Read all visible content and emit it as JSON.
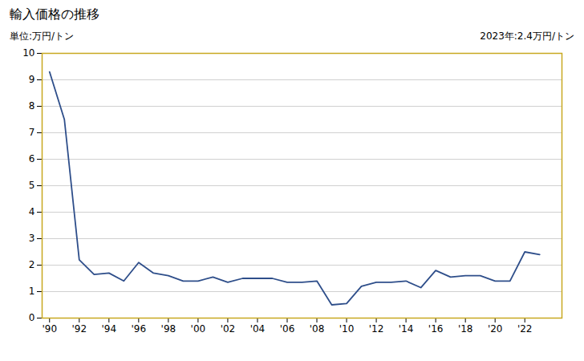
{
  "chart_data": {
    "type": "line",
    "title": "輸入価格の推移",
    "ylabel": "単位:万円/トン",
    "annotation": "2023年:2.4万円/トン",
    "x": [
      1990,
      1991,
      1992,
      1993,
      1994,
      1995,
      1996,
      1997,
      1998,
      1999,
      2000,
      2001,
      2002,
      2003,
      2004,
      2005,
      2006,
      2007,
      2008,
      2009,
      2010,
      2011,
      2012,
      2013,
      2014,
      2015,
      2016,
      2017,
      2018,
      2019,
      2020,
      2021,
      2022,
      2023
    ],
    "values": [
      9.3,
      7.5,
      2.2,
      1.65,
      1.7,
      1.4,
      2.1,
      1.7,
      1.6,
      1.4,
      1.4,
      1.55,
      1.35,
      1.5,
      1.5,
      1.5,
      1.35,
      1.35,
      1.4,
      0.5,
      0.55,
      1.2,
      1.35,
      1.35,
      1.4,
      1.15,
      1.8,
      1.55,
      1.6,
      1.6,
      1.4,
      1.4,
      2.5,
      2.4
    ],
    "color": "#2e4e8a",
    "xlim": [
      1989.5,
      2024.5
    ],
    "xticks": [
      {
        "value": 1990,
        "label": "'90"
      },
      {
        "value": 1992,
        "label": "'92"
      },
      {
        "value": 1994,
        "label": "'94"
      },
      {
        "value": 1996,
        "label": "'96"
      },
      {
        "value": 1998,
        "label": "'98"
      },
      {
        "value": 2000,
        "label": "'00"
      },
      {
        "value": 2002,
        "label": "'02"
      },
      {
        "value": 2004,
        "label": "'04"
      },
      {
        "value": 2006,
        "label": "'06"
      },
      {
        "value": 2008,
        "label": "'08"
      },
      {
        "value": 2010,
        "label": "'10"
      },
      {
        "value": 2012,
        "label": "'12"
      },
      {
        "value": 2014,
        "label": "'14"
      },
      {
        "value": 2016,
        "label": "'16"
      },
      {
        "value": 2018,
        "label": "'18"
      },
      {
        "value": 2020,
        "label": "'20"
      },
      {
        "value": 2022,
        "label": "'22"
      }
    ],
    "ylim": [
      0,
      10
    ],
    "yticks": [
      0,
      1,
      2,
      3,
      4,
      5,
      6,
      7,
      8,
      9,
      10
    ],
    "grid": true
  }
}
